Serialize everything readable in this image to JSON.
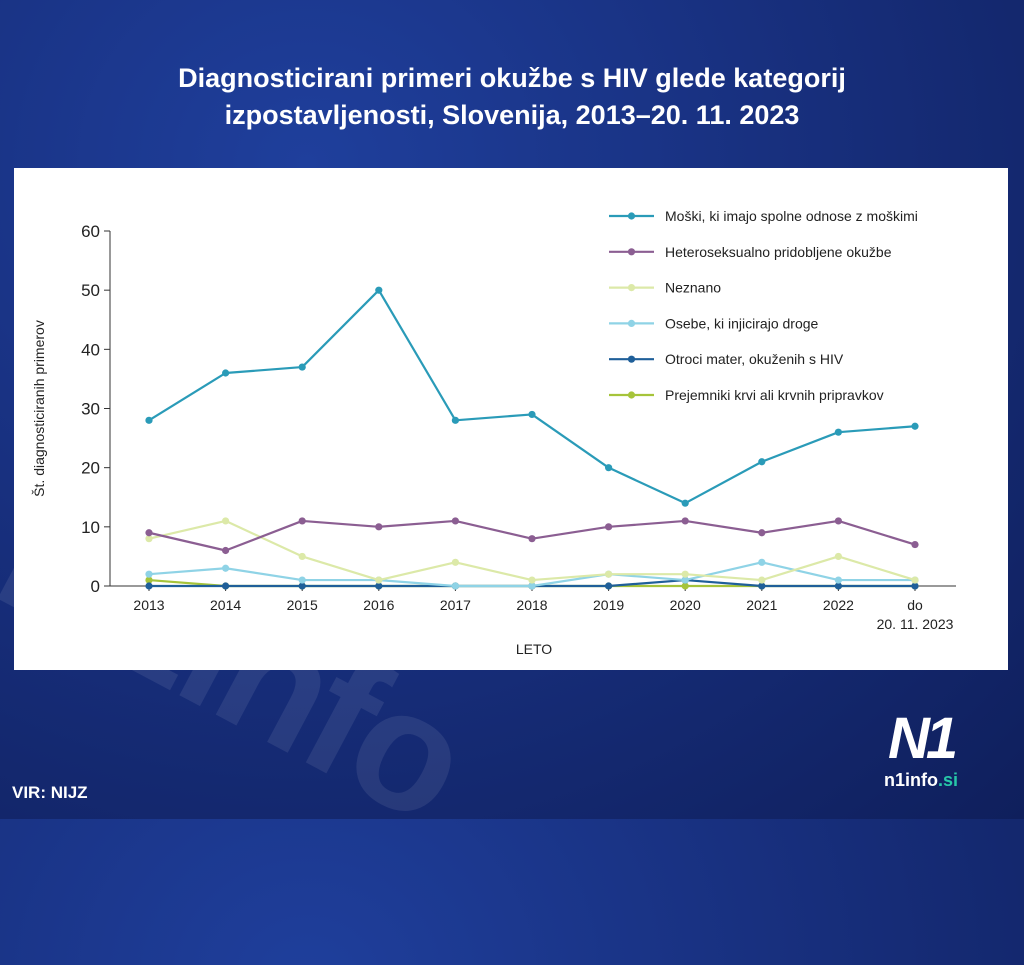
{
  "header": {
    "title_line1": "Diagnosticirani primeri okužbe s HIV glede kategorij",
    "title_line2": "izpostavljenosti, Slovenija, 2013–20. 11. 2023"
  },
  "footer": {
    "source": "VIR: NIJZ"
  },
  "logo": {
    "mark": "N1",
    "site_main": "n1info",
    "site_suffix": ".si",
    "accent_color": "#27c7a8"
  },
  "chart_data": {
    "type": "line",
    "title": "Diagnosticirani primeri okužbe s HIV glede kategorij izpostavljenosti, Slovenija, 2013–20. 11. 2023",
    "xlabel": "LETO",
    "ylabel": "Št. diagnosticiranih primerov",
    "ylim": [
      0,
      60
    ],
    "yticks": [
      "0",
      "10",
      "20",
      "30",
      "40",
      "50",
      "60"
    ],
    "categories": [
      "2013",
      "2014",
      "2015",
      "2016",
      "2017",
      "2018",
      "2019",
      "2020",
      "2021",
      "2022",
      "do 20. 11. 2023"
    ],
    "category_labels": [
      [
        "2013"
      ],
      [
        "2014"
      ],
      [
        "2015"
      ],
      [
        "2016"
      ],
      [
        "2017"
      ],
      [
        "2018"
      ],
      [
        "2019"
      ],
      [
        "2020"
      ],
      [
        "2021"
      ],
      [
        "2022"
      ],
      [
        "do",
        "20. 11. 2023"
      ]
    ],
    "grid": false,
    "legend_position": "top-right",
    "series": [
      {
        "name": "Moški, ki imajo spolne odnose z moškimi",
        "color": "#2a9bb8",
        "values": [
          28,
          36,
          37,
          50,
          28,
          29,
          20,
          14,
          21,
          26,
          27
        ]
      },
      {
        "name": "Heteroseksualno pridobljene okužbe",
        "color": "#8b5e92",
        "values": [
          9,
          6,
          11,
          10,
          11,
          8,
          10,
          11,
          9,
          11,
          7
        ]
      },
      {
        "name": "Neznano",
        "color": "#dce9a8",
        "values": [
          8,
          11,
          5,
          1,
          4,
          1,
          2,
          2,
          1,
          5,
          1
        ]
      },
      {
        "name": "Osebe, ki injicirajo droge",
        "color": "#8fd3e6",
        "values": [
          2,
          3,
          1,
          1,
          0,
          0,
          2,
          1,
          4,
          1,
          1
        ]
      },
      {
        "name": "Otroci mater, okuženih s HIV",
        "color": "#1f5f99",
        "values": [
          0,
          0,
          0,
          0,
          0,
          0,
          0,
          1,
          0,
          0,
          0
        ]
      },
      {
        "name": "Prejemniki krvi ali krvnih pripravkov",
        "color": "#a6c43a",
        "values": [
          1,
          0,
          0,
          0,
          0,
          0,
          0,
          0,
          0,
          0,
          0
        ]
      }
    ]
  }
}
